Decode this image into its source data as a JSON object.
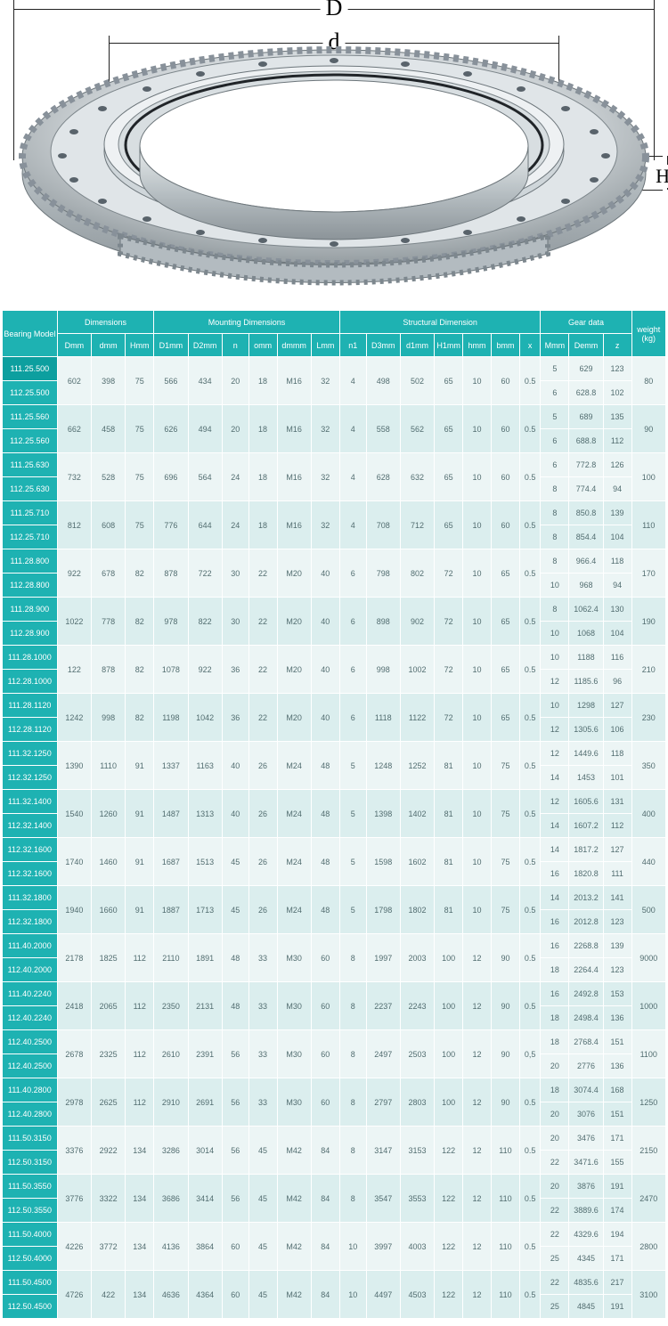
{
  "diagram": {
    "D": "D",
    "d": "d",
    "H": "H"
  },
  "accent_color": "#1eb2b2",
  "headers": {
    "group_model": "Bearing Model",
    "group_dim": "Dimensions",
    "group_mount": "Mounting Dimensions",
    "group_struct": "Structural Dimension",
    "group_gear": "Gear data",
    "group_weight": "weight (kg)",
    "cols": [
      "Dmm",
      "dmm",
      "Hmm",
      "D1mm",
      "D2mm",
      "n",
      "omm",
      "dmmm",
      "Lmm",
      "n1",
      "D3mm",
      "d1mm",
      "H1mm",
      "hmm",
      "bmm",
      "x",
      "Mmm",
      "Demm",
      "z"
    ]
  },
  "rows": [
    {
      "m": "111.25.500",
      "g": [
        "5",
        "629",
        "123"
      ],
      "s": [
        "602",
        "398",
        "75",
        "566",
        "434",
        "20",
        "18",
        "M16",
        "32",
        "4",
        "498",
        "502",
        "65",
        "10",
        "60",
        "0.5"
      ],
      "w": "80",
      "a": true
    },
    {
      "m": "112.25.500",
      "g": [
        "6",
        "628.8",
        "102"
      ]
    },
    {
      "m": "111.25.560",
      "g": [
        "5",
        "689",
        "135"
      ],
      "s": [
        "662",
        "458",
        "75",
        "626",
        "494",
        "20",
        "18",
        "M16",
        "32",
        "4",
        "558",
        "562",
        "65",
        "10",
        "60",
        "0.5"
      ],
      "w": "90"
    },
    {
      "m": "112.25.560",
      "g": [
        "6",
        "688.8",
        "112"
      ]
    },
    {
      "m": "111.25.630",
      "g": [
        "6",
        "772.8",
        "126"
      ],
      "s": [
        "732",
        "528",
        "75",
        "696",
        "564",
        "24",
        "18",
        "M16",
        "32",
        "4",
        "628",
        "632",
        "65",
        "10",
        "60",
        "0.5"
      ],
      "w": "100"
    },
    {
      "m": "112.25.630",
      "g": [
        "8",
        "774.4",
        "94"
      ]
    },
    {
      "m": "111.25.710",
      "g": [
        "8",
        "850.8",
        "139"
      ],
      "s": [
        "812",
        "608",
        "75",
        "776",
        "644",
        "24",
        "18",
        "M16",
        "32",
        "4",
        "708",
        "712",
        "65",
        "10",
        "60",
        "0.5"
      ],
      "w": "110"
    },
    {
      "m": "112.25.710",
      "g": [
        "8",
        "854.4",
        "104"
      ]
    },
    {
      "m": "111.28.800",
      "g": [
        "8",
        "966.4",
        "118"
      ],
      "s": [
        "922",
        "678",
        "82",
        "878",
        "722",
        "30",
        "22",
        "M20",
        "40",
        "6",
        "798",
        "802",
        "72",
        "10",
        "65",
        "0.5"
      ],
      "w": "170"
    },
    {
      "m": "112.28.800",
      "g": [
        "10",
        "968",
        "94"
      ]
    },
    {
      "m": "111.28.900",
      "g": [
        "8",
        "1062.4",
        "130"
      ],
      "s": [
        "1022",
        "778",
        "82",
        "978",
        "822",
        "30",
        "22",
        "M20",
        "40",
        "6",
        "898",
        "902",
        "72",
        "10",
        "65",
        "0.5"
      ],
      "w": "190"
    },
    {
      "m": "112.28.900",
      "g": [
        "10",
        "1068",
        "104"
      ]
    },
    {
      "m": "111.28.1000",
      "g": [
        "10",
        "1188",
        "116"
      ],
      "s": [
        "122",
        "878",
        "82",
        "1078",
        "922",
        "36",
        "22",
        "M20",
        "40",
        "6",
        "998",
        "1002",
        "72",
        "10",
        "65",
        "0.5"
      ],
      "w": "210"
    },
    {
      "m": "112.28.1000",
      "g": [
        "12",
        "1185.6",
        "96"
      ]
    },
    {
      "m": "111.28.1120",
      "g": [
        "10",
        "1298",
        "127"
      ],
      "s": [
        "1242",
        "998",
        "82",
        "1198",
        "1042",
        "36",
        "22",
        "M20",
        "40",
        "6",
        "1118",
        "1122",
        "72",
        "10",
        "65",
        "0.5"
      ],
      "w": "230"
    },
    {
      "m": "112.28.1120",
      "g": [
        "12",
        "1305.6",
        "106"
      ]
    },
    {
      "m": "111.32.1250",
      "g": [
        "12",
        "1449.6",
        "118"
      ],
      "s": [
        "1390",
        "1110",
        "91",
        "1337",
        "1163",
        "40",
        "26",
        "M24",
        "48",
        "5",
        "1248",
        "1252",
        "81",
        "10",
        "75",
        "0.5"
      ],
      "w": "350"
    },
    {
      "m": "112.32.1250",
      "g": [
        "14",
        "1453",
        "101"
      ]
    },
    {
      "m": "111.32.1400",
      "g": [
        "12",
        "1605.6",
        "131"
      ],
      "s": [
        "1540",
        "1260",
        "91",
        "1487",
        "1313",
        "40",
        "26",
        "M24",
        "48",
        "5",
        "1398",
        "1402",
        "81",
        "10",
        "75",
        "0.5"
      ],
      "w": "400"
    },
    {
      "m": "112.32.1400",
      "g": [
        "14",
        "1607.2",
        "112"
      ]
    },
    {
      "m": "112.32.1600",
      "g": [
        "14",
        "1817.2",
        "127"
      ],
      "s": [
        "1740",
        "1460",
        "91",
        "1687",
        "1513",
        "45",
        "26",
        "M24",
        "48",
        "5",
        "1598",
        "1602",
        "81",
        "10",
        "75",
        "0.5"
      ],
      "w": "440"
    },
    {
      "m": "112.32.1600",
      "g": [
        "16",
        "1820.8",
        "111"
      ]
    },
    {
      "m": "111.32.1800",
      "g": [
        "14",
        "2013.2",
        "141"
      ],
      "s": [
        "1940",
        "1660",
        "91",
        "1887",
        "1713",
        "45",
        "26",
        "M24",
        "48",
        "5",
        "1798",
        "1802",
        "81",
        "10",
        "75",
        "0.5"
      ],
      "w": "500"
    },
    {
      "m": "112.32.1800",
      "g": [
        "16",
        "2012.8",
        "123"
      ]
    },
    {
      "m": "111.40.2000",
      "g": [
        "16",
        "2268.8",
        "139"
      ],
      "s": [
        "2178",
        "1825",
        "112",
        "2110",
        "1891",
        "48",
        "33",
        "M30",
        "60",
        "8",
        "1997",
        "2003",
        "100",
        "12",
        "90",
        "0.5"
      ],
      "w": "9000"
    },
    {
      "m": "112.40.2000",
      "g": [
        "18",
        "2264.4",
        "123"
      ]
    },
    {
      "m": "111.40.2240",
      "g": [
        "16",
        "2492.8",
        "153"
      ],
      "s": [
        "2418",
        "2065",
        "112",
        "2350",
        "2131",
        "48",
        "33",
        "M30",
        "60",
        "8",
        "2237",
        "2243",
        "100",
        "12",
        "90",
        "0.5"
      ],
      "w": "1000"
    },
    {
      "m": "112.40.2240",
      "g": [
        "18",
        "2498.4",
        "136"
      ]
    },
    {
      "m": "112.40.2500",
      "g": [
        "18",
        "2768.4",
        "151"
      ],
      "s": [
        "2678",
        "2325",
        "112",
        "2610",
        "2391",
        "56",
        "33",
        "M30",
        "60",
        "8",
        "2497",
        "2503",
        "100",
        "12",
        "90",
        "0,5"
      ],
      "w": "1100"
    },
    {
      "m": "112.40.2500",
      "g": [
        "20",
        "2776",
        "136"
      ]
    },
    {
      "m": "111.40.2800",
      "g": [
        "18",
        "3074.4",
        "168"
      ],
      "s": [
        "2978",
        "2625",
        "112",
        "2910",
        "2691",
        "56",
        "33",
        "M30",
        "60",
        "8",
        "2797",
        "2803",
        "100",
        "12",
        "90",
        "0.5"
      ],
      "w": "1250"
    },
    {
      "m": "112.40.2800",
      "g": [
        "20",
        "3076",
        "151"
      ]
    },
    {
      "m": "111.50.3150",
      "g": [
        "20",
        "3476",
        "171"
      ],
      "s": [
        "3376",
        "2922",
        "134",
        "3286",
        "3014",
        "56",
        "45",
        "M42",
        "84",
        "8",
        "3147",
        "3153",
        "122",
        "12",
        "110",
        "0.5"
      ],
      "w": "2150"
    },
    {
      "m": "112.50.3150",
      "g": [
        "22",
        "3471.6",
        "155"
      ]
    },
    {
      "m": "111.50.3550",
      "g": [
        "20",
        "3876",
        "191"
      ],
      "s": [
        "3776",
        "3322",
        "134",
        "3686",
        "3414",
        "56",
        "45",
        "M42",
        "84",
        "8",
        "3547",
        "3553",
        "122",
        "12",
        "110",
        "0.5"
      ],
      "w": "2470"
    },
    {
      "m": "112.50.3550",
      "g": [
        "22",
        "3889.6",
        "174"
      ]
    },
    {
      "m": "111.50.4000",
      "g": [
        "22",
        "4329.6",
        "194"
      ],
      "s": [
        "4226",
        "3772",
        "134",
        "4136",
        "3864",
        "60",
        "45",
        "M42",
        "84",
        "10",
        "3997",
        "4003",
        "122",
        "12",
        "110",
        "0.5"
      ],
      "w": "2800"
    },
    {
      "m": "112.50.4000",
      "g": [
        "25",
        "4345",
        "171"
      ]
    },
    {
      "m": "111.50.4500",
      "g": [
        "22",
        "4835.6",
        "217"
      ],
      "s": [
        "4726",
        "422",
        "134",
        "4636",
        "4364",
        "60",
        "45",
        "M42",
        "84",
        "10",
        "4497",
        "4503",
        "122",
        "12",
        "110",
        "0.5"
      ],
      "w": "3100"
    },
    {
      "m": "112.50.4500",
      "g": [
        "25",
        "4845",
        "191"
      ]
    }
  ]
}
